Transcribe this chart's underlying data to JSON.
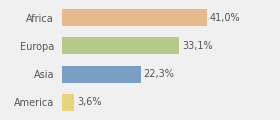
{
  "categories": [
    "Africa",
    "Europa",
    "Asia",
    "America"
  ],
  "values": [
    41.0,
    33.1,
    22.3,
    3.6
  ],
  "labels": [
    "41,0%",
    "33,1%",
    "22,3%",
    "3,6%"
  ],
  "bar_colors": [
    "#e8b98a",
    "#b5c98a",
    "#7a9fc4",
    "#e8d47a"
  ],
  "background_color": "#f0f0f0",
  "xlim": [
    0,
    60
  ],
  "bar_height": 0.6,
  "label_fontsize": 7,
  "tick_fontsize": 7,
  "figsize": [
    2.8,
    1.2
  ],
  "dpi": 100
}
